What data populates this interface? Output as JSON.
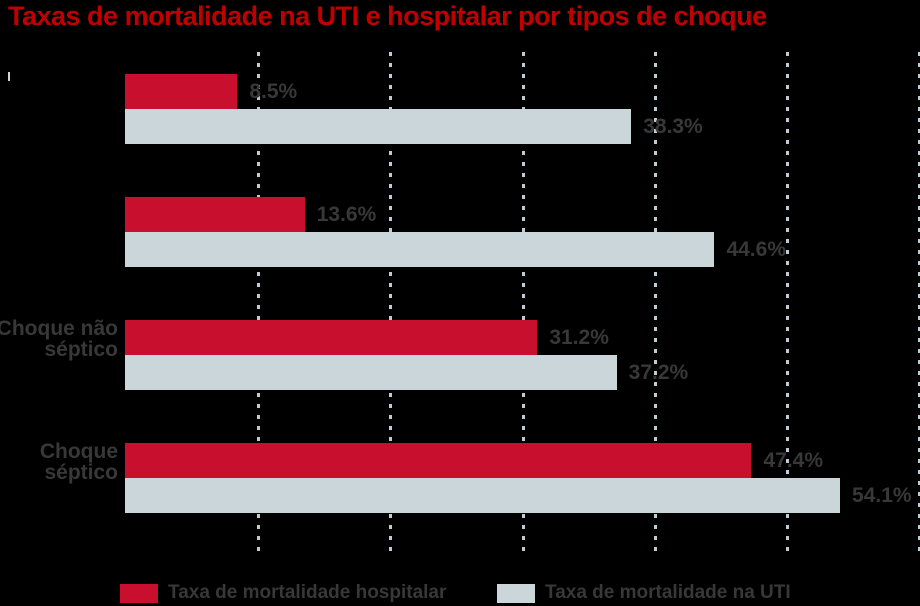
{
  "title": "Taxas de mortalidade na UTI e hospitalar por tipos de choque",
  "colors": {
    "background": "#000000",
    "title_red": "#C00000",
    "hospital_red": "#C8102E",
    "uti_gray": "#CAD6DA",
    "gridline": "#BFCDD2",
    "text_dark": "#383838"
  },
  "legend": {
    "hospital_label": "Taxa de mortalidade hospitalar",
    "uti_label": "Taxa de mortalidade na UTI"
  },
  "chart_data": {
    "type": "bar",
    "orientation": "horizontal",
    "title": "Taxas de mortalidade na UTI e hospitalar por tipos de choque",
    "categories": [
      "",
      "",
      "Choque não séptico",
      "Choque séptico"
    ],
    "series": [
      {
        "name": "Taxa de mortalidade hospitalar",
        "color": "#C8102E",
        "values": [
          8.5,
          13.6,
          31.2,
          47.4
        ]
      },
      {
        "name": "Taxa de mortalidade na UTI",
        "color": "#CAD6DA",
        "values": [
          38.3,
          44.6,
          37.2,
          54.1
        ]
      }
    ],
    "xlim": [
      0,
      60
    ],
    "gridlines_pct": [
      10,
      20,
      30,
      40,
      50,
      60
    ],
    "grid": "dotted-vertical",
    "legend_position": "bottom",
    "value_label_format": "percent-one-decimal"
  },
  "rows": [
    {
      "label_line1": "",
      "label_line2": "",
      "hospital_pct": 8.5,
      "hospital_label": "8.5%",
      "uti_pct": 38.3,
      "uti_label": "38.3%"
    },
    {
      "label_line1": "",
      "label_line2": "",
      "hospital_pct": 13.6,
      "hospital_label": "13.6%",
      "uti_pct": 44.6,
      "uti_label": "44.6%"
    },
    {
      "label_line1": "Choque não",
      "label_line2": "séptico",
      "hospital_pct": 31.2,
      "hospital_label": "31.2%",
      "uti_pct": 37.2,
      "uti_label": "37.2%"
    },
    {
      "label_line1": "Choque",
      "label_line2": "séptico",
      "hospital_pct": 47.4,
      "hospital_label": "47.4%",
      "uti_pct": 54.1,
      "uti_label": "54.1%"
    }
  ]
}
